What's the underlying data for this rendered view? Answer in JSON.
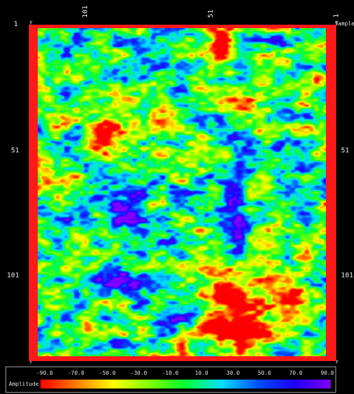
{
  "viewer": {
    "top_axis_labels": [
      "101",
      "51",
      "1"
    ],
    "left_axis_labels": [
      "1",
      "51",
      "101"
    ],
    "right_axis_labels": [
      "Sample",
      "51",
      "101"
    ],
    "corner_marks": [
      "y",
      "y",
      "y",
      "y"
    ]
  },
  "colors": {
    "border": "#ff1a1a",
    "background": "#000000"
  },
  "colorbar": {
    "title": "Amplitude",
    "ticks": [
      "-90.0",
      "-70.0",
      "-50.0",
      "-30.0",
      "-10.0",
      "10.0",
      "30.0",
      "50.0",
      "70.0",
      "90.0"
    ],
    "palette": [
      "#ff0000",
      "#ff8000",
      "#ffff00",
      "#80ff00",
      "#00ff33",
      "#00e0ff",
      "#0050ff",
      "#1e00ff",
      "#8000ff"
    ]
  },
  "chart_data": {
    "type": "heatmap",
    "title": "",
    "xlabel": "",
    "ylabel": "Sample",
    "x_tick_labels": [
      "101",
      "51",
      "1"
    ],
    "y_tick_labels": [
      "1",
      "51",
      "101"
    ],
    "color_range": [
      -90,
      90
    ],
    "colorbar_label": "Amplitude",
    "grid": false
  }
}
